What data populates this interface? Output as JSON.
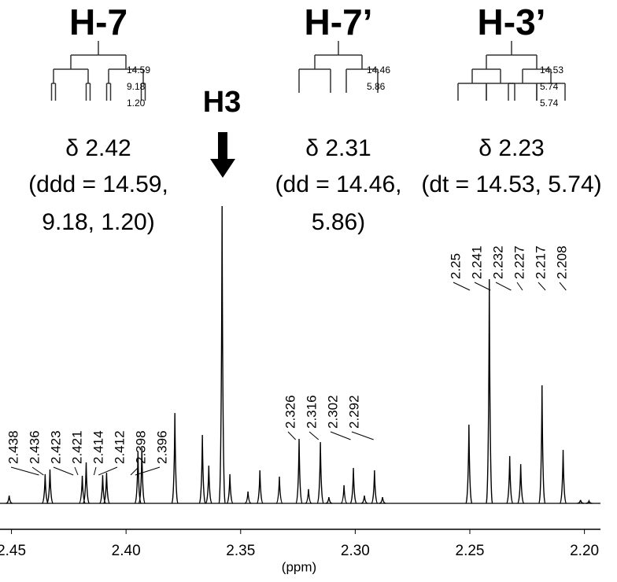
{
  "chart_data": {
    "type": "spectrum",
    "color": "#000000",
    "x": [
      2.451,
      2.4353,
      2.4332,
      2.4191,
      2.4174,
      2.4102,
      2.4085,
      2.3948,
      2.3931,
      2.3787,
      2.3667,
      2.3639,
      2.3581,
      2.3547,
      2.3468,
      2.3416,
      2.3331,
      2.3245,
      2.3204,
      2.3152,
      2.3115,
      2.3049,
      2.3008,
      2.296,
      2.2916,
      2.2881,
      2.2504,
      2.2415,
      2.2326,
      2.2278,
      2.2185,
      2.2093,
      2.2017,
      2.198
    ],
    "values": [
      2.6,
      9.8,
      11.4,
      9.3,
      13.8,
      9.5,
      10.3,
      17.5,
      18.5,
      30.4,
      23.0,
      12.7,
      100,
      9.8,
      4.0,
      11.1,
      9.0,
      21.7,
      4.8,
      20.6,
      2.1,
      6.1,
      11.9,
      2.6,
      11.1,
      2.1,
      26.5,
      75.4,
      15.9,
      13.2,
      39.7,
      18.0,
      1.1,
      0.8
    ],
    "xlim": [
      2.455,
      2.193
    ],
    "ylim": [
      0,
      100
    ],
    "xticks": [
      2.45,
      {
        "value": 2.4,
        "label": "2.40"
      },
      2.35,
      {
        "value": 2.3,
        "label": "2.30"
      },
      2.25,
      {
        "value": 2.2,
        "label": "2.20"
      }
    ],
    "xlabel": "(ppm)",
    "peak_labels": [
      2.438,
      2.436,
      2.423,
      2.421,
      2.414,
      2.412,
      2.398,
      2.396,
      2.326,
      2.316,
      2.302,
      2.292,
      2.25,
      2.241,
      2.232,
      2.227,
      2.217,
      2.208
    ],
    "annotation": "H3"
  },
  "multiplets": [
    {
      "title": "H-7",
      "shift": "δ 2.42",
      "lines": [
        "(ddd = 14.59,",
        "9.18, 1.20)"
      ],
      "couplings": [
        "14.59",
        "9.18",
        "1.20"
      ]
    },
    {
      "title": "H-7’",
      "shift": "δ 2.31",
      "lines": [
        "(dd = 14.46,",
        "5.86)"
      ],
      "couplings": [
        "14.46",
        "5.86"
      ]
    },
    {
      "title": "H-3’",
      "shift": "δ 2.23",
      "lines": [
        "(dt = 14.53, 5.74)"
      ],
      "couplings": [
        "14.53",
        "5.74",
        "5.74"
      ]
    }
  ]
}
